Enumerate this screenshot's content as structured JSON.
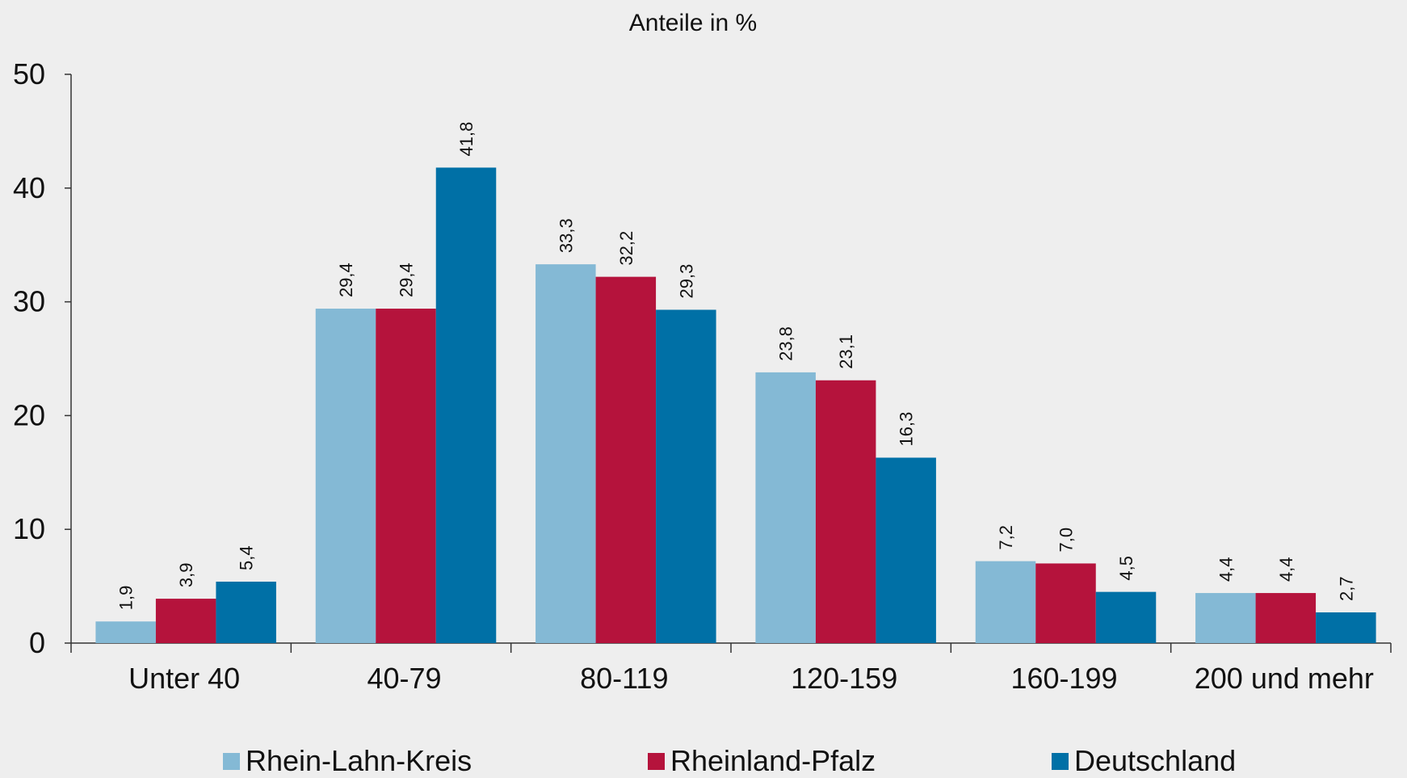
{
  "chart_data": {
    "type": "bar",
    "title": "Anteile in %",
    "xlabel": "",
    "ylabel": "",
    "ylim": [
      0,
      50
    ],
    "yticks": [
      "0",
      "10",
      "20",
      "30",
      "40",
      "50"
    ],
    "categories": [
      "Unter 40",
      "40-79",
      "80-119",
      "120-159",
      "160-199",
      "200 und mehr"
    ],
    "series": [
      {
        "name": "Rhein-Lahn-Kreis",
        "color": "#84b9d5",
        "values": [
          1.9,
          29.4,
          33.3,
          23.8,
          7.2,
          4.4
        ],
        "labels": [
          "1,9",
          "29,4",
          "33,3",
          "23,8",
          "7,2",
          "4,4"
        ]
      },
      {
        "name": "Rheinland-Pfalz",
        "color": "#b5133c",
        "values": [
          3.9,
          29.4,
          32.2,
          23.1,
          7.0,
          4.4
        ],
        "labels": [
          "3,9",
          "29,4",
          "32,2",
          "23,1",
          "7,0",
          "4,4"
        ]
      },
      {
        "name": "Deutschland",
        "color": "#0070a6",
        "values": [
          5.4,
          41.8,
          29.3,
          16.3,
          4.5,
          2.7
        ],
        "labels": [
          "5,4",
          "41,8",
          "29,3",
          "16,3",
          "4,5",
          "2,7"
        ]
      }
    ],
    "grid": false,
    "legend_position": "bottom",
    "data_labels": "rotated-vertical"
  }
}
